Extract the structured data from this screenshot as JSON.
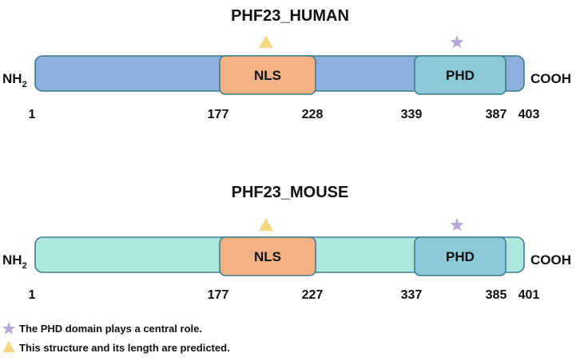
{
  "proteins": [
    {
      "title": "PHF23_HUMAN",
      "length": 403,
      "color": "#8eaede",
      "n_term": "NH",
      "n_sub": "2",
      "c_term": "COOH",
      "domains": [
        {
          "name": "NLS",
          "start": 177,
          "end": 228,
          "color": "#f4b183",
          "marker": "triangle"
        },
        {
          "name": "PHD",
          "start": 339,
          "end": 387,
          "color": "#8cc9d9",
          "marker": "star"
        }
      ],
      "positions": [
        "1",
        "177",
        "228",
        "339",
        "387",
        "403"
      ]
    },
    {
      "title": "PHF23_MOUSE",
      "length": 401,
      "color": "#aee6e0",
      "n_term": "NH",
      "n_sub": "2",
      "c_term": "COOH",
      "domains": [
        {
          "name": "NLS",
          "start": 177,
          "end": 227,
          "color": "#f4b183",
          "marker": "triangle"
        },
        {
          "name": "PHD",
          "start": 337,
          "end": 385,
          "color": "#8cc9d9",
          "marker": "star"
        }
      ],
      "positions": [
        "1",
        "177",
        "227",
        "337",
        "385",
        "401"
      ]
    }
  ],
  "legend": [
    {
      "marker": "star",
      "color": "#b4a7d6",
      "text": "The PHD domain plays a central role."
    },
    {
      "marker": "triangle",
      "color": "#f6d884",
      "text": "This structure and its length are predicted."
    }
  ],
  "colors": {
    "star": "#b4a7d6",
    "triangle": "#f6d884",
    "stroke": "#3c7f8c"
  }
}
